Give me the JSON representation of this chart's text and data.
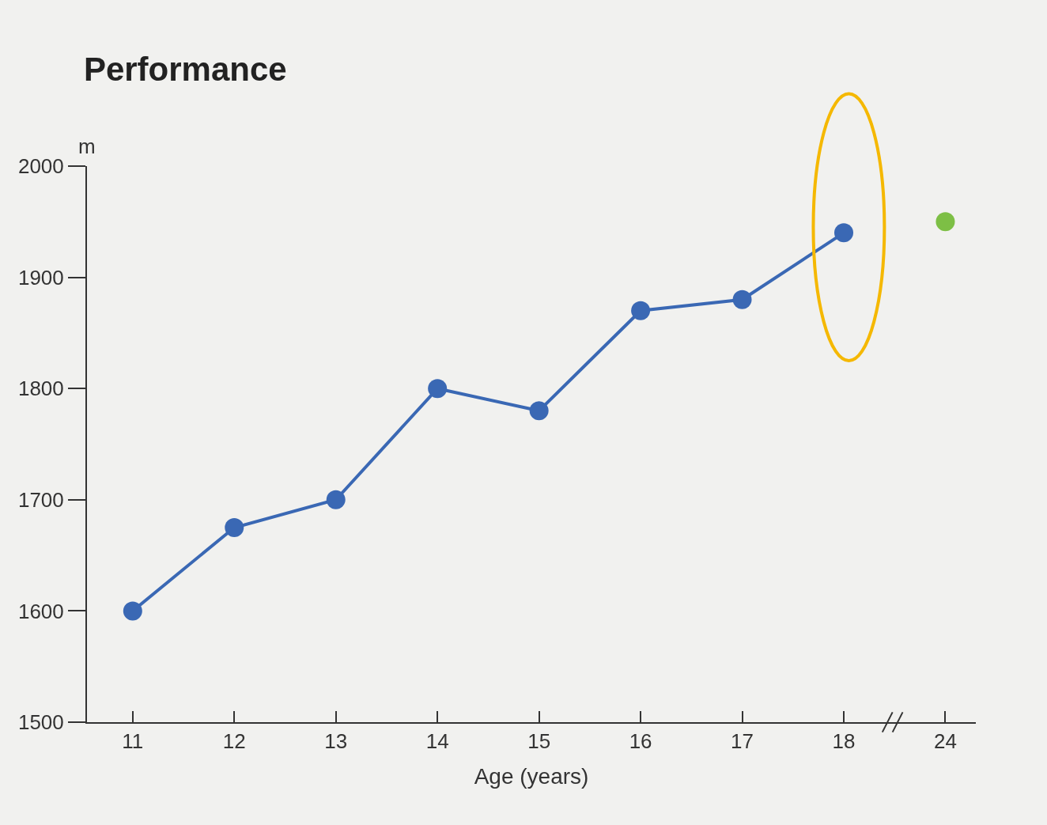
{
  "chart_data": {
    "type": "line",
    "title": "Performance",
    "xlabel": "Age (years)",
    "ylabel": "m",
    "categories": [
      "11",
      "12",
      "13",
      "14",
      "15",
      "16",
      "17",
      "18",
      "24"
    ],
    "series": [
      {
        "color": "#3a68b4",
        "values": [
          1600,
          1675,
          1700,
          1800,
          1780,
          1870,
          1880,
          1940,
          null
        ]
      },
      {
        "type": "scatter",
        "color": "#7dbf45",
        "values": [
          null,
          null,
          null,
          null,
          null,
          null,
          null,
          null,
          1950
        ]
      }
    ],
    "ylim": [
      1500,
      2000
    ],
    "yticks": [
      1500,
      1600,
      1700,
      1800,
      1900,
      2000
    ],
    "grid": false,
    "marker": "circle",
    "line_style": "solid"
  }
}
